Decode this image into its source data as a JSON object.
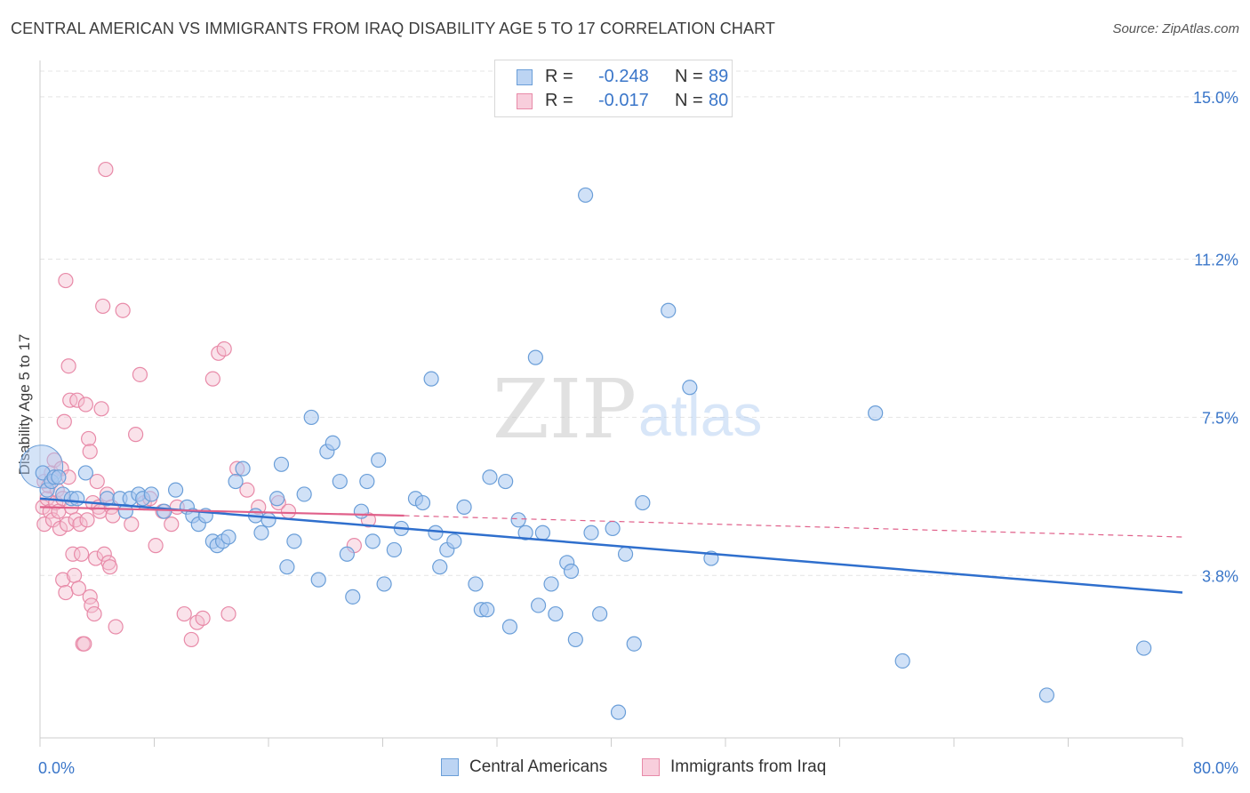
{
  "title": "CENTRAL AMERICAN VS IMMIGRANTS FROM IRAQ DISABILITY AGE 5 TO 17 CORRELATION CHART",
  "source": "Source: ZipAtlas.com",
  "watermark": {
    "zip": "ZIP",
    "atlas": "atlas"
  },
  "legend": {
    "rows": [
      {
        "r_label": "R =",
        "r_value": "-0.248",
        "n_label": "N =",
        "n_value": "89"
      },
      {
        "r_label": "R =",
        "r_value": "-0.017",
        "n_label": "N =",
        "n_value": "80"
      }
    ]
  },
  "bottom_legend": [
    "Central Americans",
    "Immigrants from Iraq"
  ],
  "colors": {
    "blue_fill": "#a9c8f0",
    "blue_stroke": "#6a9ed8",
    "blue_line": "#2f6fcd",
    "pink_fill": "#f5bfd0",
    "pink_stroke": "#e88aa8",
    "pink_line": "#e0608a",
    "tick_text": "#3a76c9",
    "grid": "#e4e4e4"
  },
  "chart_data": {
    "type": "scatter",
    "title": "CENTRAL AMERICAN VS IMMIGRANTS FROM IRAQ DISABILITY AGE 5 TO 17 CORRELATION CHART",
    "xlabel": "",
    "ylabel": "Disability Age 5 to 17",
    "xlim": [
      0,
      80
    ],
    "ylim": [
      0,
      15.6
    ],
    "x_tick_labels": [
      "0.0%",
      "80.0%"
    ],
    "y_ticks": [
      3.8,
      7.5,
      11.2,
      15.0
    ],
    "y_tick_labels": [
      "3.8%",
      "7.5%",
      "11.2%",
      "15.0%"
    ],
    "grid": true,
    "legend_position": "top-center",
    "series": [
      {
        "name": "Central Americans",
        "r": -0.248,
        "n": 89,
        "trend": {
          "x": [
            0,
            80
          ],
          "y": [
            5.6,
            3.4
          ],
          "dashed": false
        },
        "points": [
          [
            0.2,
            6.2
          ],
          [
            0.5,
            5.8
          ],
          [
            0.8,
            6.0
          ],
          [
            1.0,
            6.1
          ],
          [
            1.3,
            6.1
          ],
          [
            1.6,
            5.7
          ],
          [
            2.2,
            5.6
          ],
          [
            2.6,
            5.6
          ],
          [
            3.2,
            6.2
          ],
          [
            4.7,
            5.6
          ],
          [
            5.6,
            5.6
          ],
          [
            6.0,
            5.3
          ],
          [
            6.3,
            5.6
          ],
          [
            6.9,
            5.7
          ],
          [
            7.2,
            5.6
          ],
          [
            7.8,
            5.7
          ],
          [
            8.7,
            5.3
          ],
          [
            9.5,
            5.8
          ],
          [
            10.3,
            5.4
          ],
          [
            10.7,
            5.2
          ],
          [
            11.1,
            5.0
          ],
          [
            11.6,
            5.2
          ],
          [
            12.1,
            4.6
          ],
          [
            12.4,
            4.5
          ],
          [
            12.8,
            4.6
          ],
          [
            13.2,
            4.7
          ],
          [
            13.7,
            6.0
          ],
          [
            14.2,
            6.3
          ],
          [
            15.1,
            5.2
          ],
          [
            15.5,
            4.8
          ],
          [
            16.0,
            5.1
          ],
          [
            16.6,
            5.6
          ],
          [
            16.9,
            6.4
          ],
          [
            17.3,
            4.0
          ],
          [
            17.8,
            4.6
          ],
          [
            18.5,
            5.7
          ],
          [
            19.0,
            7.5
          ],
          [
            19.5,
            3.7
          ],
          [
            20.1,
            6.7
          ],
          [
            20.5,
            6.9
          ],
          [
            21.0,
            6.0
          ],
          [
            21.5,
            4.3
          ],
          [
            21.9,
            3.3
          ],
          [
            22.5,
            5.3
          ],
          [
            22.9,
            6.0
          ],
          [
            23.3,
            4.6
          ],
          [
            23.7,
            6.5
          ],
          [
            24.1,
            3.6
          ],
          [
            24.8,
            4.4
          ],
          [
            25.3,
            4.9
          ],
          [
            26.3,
            5.6
          ],
          [
            26.8,
            5.5
          ],
          [
            27.4,
            8.4
          ],
          [
            27.7,
            4.8
          ],
          [
            28.0,
            4.0
          ],
          [
            28.5,
            4.4
          ],
          [
            29.0,
            4.6
          ],
          [
            29.7,
            5.4
          ],
          [
            30.5,
            3.6
          ],
          [
            30.9,
            3.0
          ],
          [
            31.3,
            3.0
          ],
          [
            31.5,
            6.1
          ],
          [
            32.6,
            6.0
          ],
          [
            32.9,
            2.6
          ],
          [
            33.5,
            5.1
          ],
          [
            34.0,
            4.8
          ],
          [
            34.7,
            8.9
          ],
          [
            34.9,
            3.1
          ],
          [
            35.2,
            4.8
          ],
          [
            36.1,
            2.9
          ],
          [
            36.9,
            4.1
          ],
          [
            37.2,
            3.9
          ],
          [
            37.5,
            2.3
          ],
          [
            38.6,
            4.8
          ],
          [
            38.2,
            12.7
          ],
          [
            39.2,
            2.9
          ],
          [
            40.1,
            4.9
          ],
          [
            41.0,
            4.3
          ],
          [
            41.6,
            2.2
          ],
          [
            42.2,
            5.5
          ],
          [
            44.0,
            10.0
          ],
          [
            45.5,
            8.2
          ],
          [
            47.0,
            4.2
          ],
          [
            58.5,
            7.6
          ],
          [
            60.4,
            1.8
          ],
          [
            70.5,
            1.0
          ],
          [
            77.3,
            2.1
          ],
          [
            40.5,
            0.6
          ],
          [
            35.8,
            3.6
          ]
        ]
      },
      {
        "name": "Immigrants from Iraq",
        "r": -0.017,
        "n": 80,
        "trend": {
          "x": [
            0,
            25.5,
            80
          ],
          "y": [
            5.4,
            5.2,
            4.7
          ],
          "dashed_after": 25.5
        },
        "points": [
          [
            0.2,
            5.4
          ],
          [
            0.3,
            6.0
          ],
          [
            0.3,
            5.0
          ],
          [
            0.5,
            5.6
          ],
          [
            0.6,
            5.9
          ],
          [
            0.7,
            5.3
          ],
          [
            0.8,
            6.2
          ],
          [
            0.9,
            5.1
          ],
          [
            1.0,
            6.5
          ],
          [
            1.1,
            5.5
          ],
          [
            1.2,
            5.8
          ],
          [
            1.3,
            5.3
          ],
          [
            1.4,
            4.9
          ],
          [
            1.5,
            6.3
          ],
          [
            1.6,
            3.7
          ],
          [
            1.6,
            5.6
          ],
          [
            1.7,
            7.4
          ],
          [
            1.8,
            3.4
          ],
          [
            1.8,
            10.7
          ],
          [
            1.9,
            5.0
          ],
          [
            2.0,
            8.7
          ],
          [
            2.1,
            7.9
          ],
          [
            2.2,
            5.4
          ],
          [
            2.3,
            4.3
          ],
          [
            2.4,
            3.8
          ],
          [
            2.5,
            5.1
          ],
          [
            2.6,
            7.9
          ],
          [
            2.7,
            3.5
          ],
          [
            2.8,
            5.0
          ],
          [
            2.9,
            4.3
          ],
          [
            3.0,
            2.2
          ],
          [
            3.1,
            2.2
          ],
          [
            3.2,
            7.8
          ],
          [
            3.3,
            5.1
          ],
          [
            3.4,
            7.0
          ],
          [
            3.5,
            3.3
          ],
          [
            3.6,
            3.1
          ],
          [
            3.7,
            5.5
          ],
          [
            3.8,
            2.9
          ],
          [
            3.9,
            4.2
          ],
          [
            4.0,
            6.0
          ],
          [
            4.1,
            5.4
          ],
          [
            4.2,
            5.3
          ],
          [
            4.3,
            7.7
          ],
          [
            4.4,
            10.1
          ],
          [
            4.5,
            4.3
          ],
          [
            4.6,
            13.3
          ],
          [
            4.7,
            5.7
          ],
          [
            4.8,
            4.1
          ],
          [
            4.9,
            4.0
          ],
          [
            5.0,
            5.4
          ],
          [
            5.1,
            5.2
          ],
          [
            5.3,
            2.6
          ],
          [
            5.8,
            10.0
          ],
          [
            6.4,
            5.0
          ],
          [
            7.0,
            8.5
          ],
          [
            7.3,
            5.5
          ],
          [
            7.7,
            5.6
          ],
          [
            8.1,
            4.5
          ],
          [
            8.6,
            5.3
          ],
          [
            9.2,
            5.0
          ],
          [
            9.6,
            5.4
          ],
          [
            10.1,
            2.9
          ],
          [
            10.6,
            2.3
          ],
          [
            11.0,
            2.7
          ],
          [
            11.4,
            2.8
          ],
          [
            12.1,
            8.4
          ],
          [
            12.5,
            9.0
          ],
          [
            12.9,
            9.1
          ],
          [
            13.2,
            2.9
          ],
          [
            13.8,
            6.3
          ],
          [
            14.5,
            5.8
          ],
          [
            15.3,
            5.4
          ],
          [
            16.7,
            5.5
          ],
          [
            17.4,
            5.3
          ],
          [
            22.0,
            4.5
          ],
          [
            23.0,
            5.1
          ],
          [
            6.7,
            7.1
          ],
          [
            3.5,
            6.7
          ],
          [
            2.0,
            6.1
          ]
        ]
      }
    ]
  }
}
